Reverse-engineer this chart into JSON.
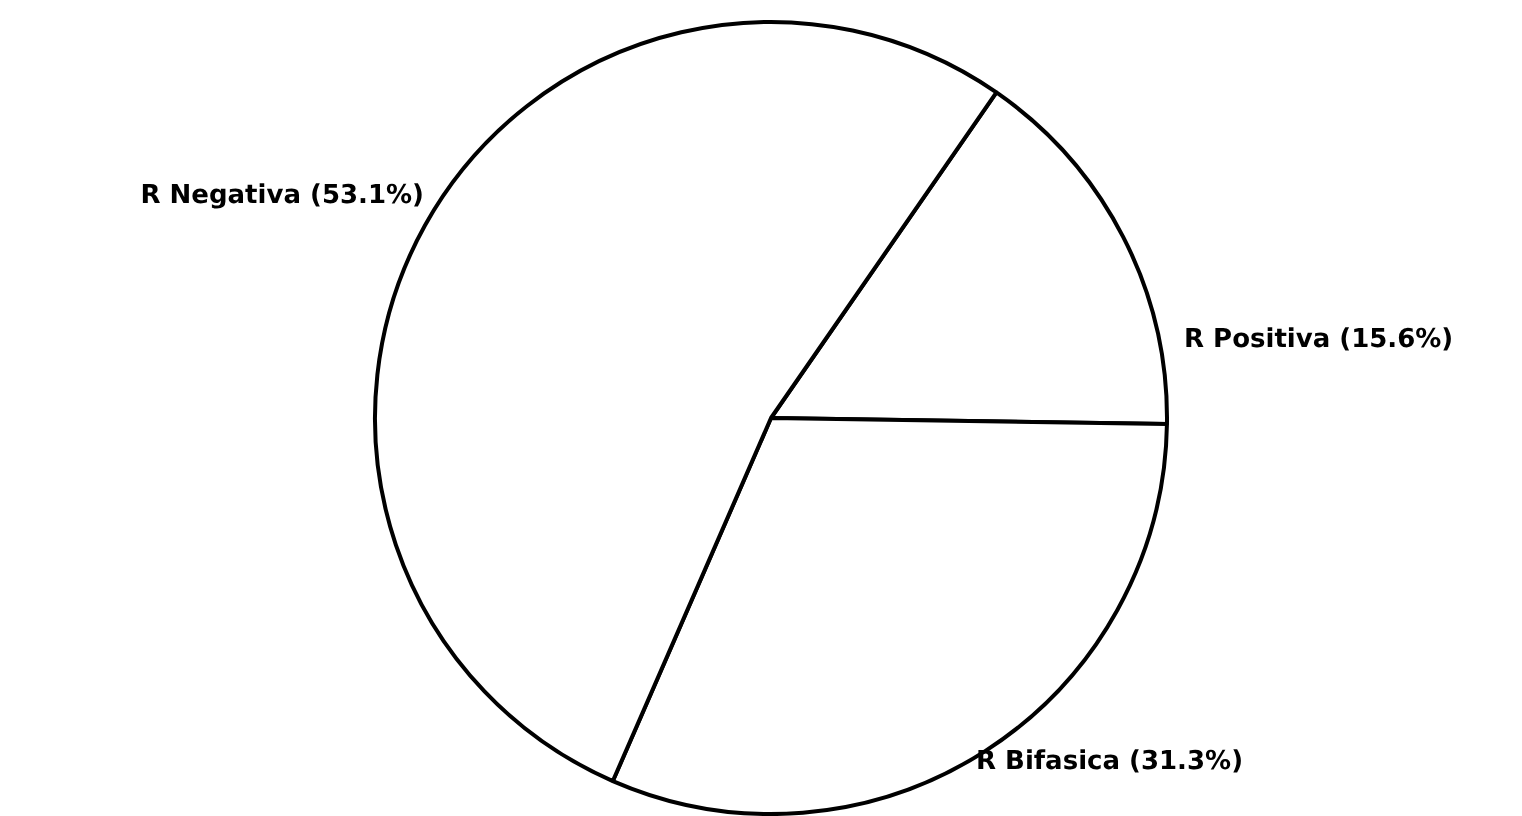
{
  "chart_data": {
    "type": "pie",
    "categories": [
      "R Positiva",
      "R Bifasica",
      "R Negativa"
    ],
    "values": [
      15.6,
      31.3,
      53.1
    ],
    "colors": [
      "#ffffff",
      "#ffffff",
      "#ffffff"
    ],
    "value_labels": [
      "(15.6%)",
      "(31.3%)",
      "(53.1%)"
    ],
    "legend": false
  }
}
